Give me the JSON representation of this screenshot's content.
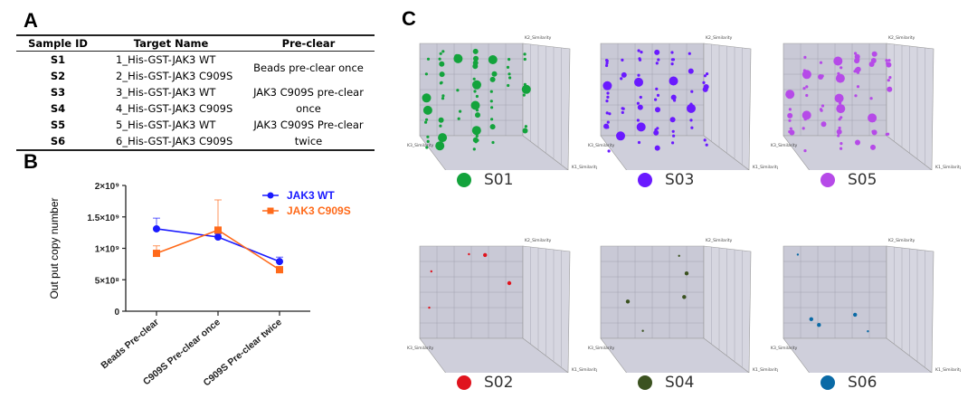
{
  "panels": {
    "a": "A",
    "b": "B",
    "c": "C"
  },
  "table": {
    "headers": [
      "Sample ID",
      "Target Name",
      "Pre-clear"
    ],
    "rows": [
      {
        "id": "S1",
        "target": "1_His-GST-JAK3 WT"
      },
      {
        "id": "S2",
        "target": "2_His-GST-JAK3 C909S"
      },
      {
        "id": "S3",
        "target": "3_His-GST-JAK3 WT"
      },
      {
        "id": "S4",
        "target": "4_His-GST-JAK3 C909S"
      },
      {
        "id": "S5",
        "target": "5_His-GST-JAK3 WT"
      },
      {
        "id": "S6",
        "target": "6_His-GST-JAK3 C909S"
      }
    ],
    "preclear_groups": [
      "Beads pre-clear once",
      "JAK3 C909S pre-clear once",
      "JAK3 C909S Pre-clear twice"
    ]
  },
  "chart_data": [
    {
      "type": "line",
      "title": "",
      "xlabel": "",
      "ylabel": "Out put copy number",
      "categories": [
        "Beads Pre-clear",
        "C909S Pre-clear once",
        "C909S Pre-clear twice"
      ],
      "ylim": [
        0,
        2000000000
      ],
      "yticks": [
        0,
        500000000,
        1000000000,
        1500000000,
        2000000000
      ],
      "ytick_labels": [
        "0",
        "5×10⁸",
        "1×10⁹",
        "1.5×10⁹",
        "2×10⁹"
      ],
      "legend_position": "top-right",
      "series": [
        {
          "name": "JAK3 WT",
          "color": "#1a1aff",
          "marker": "circle",
          "values": [
            1310000000,
            1180000000,
            790000000
          ],
          "error_upper": [
            1480000000,
            1230000000,
            860000000
          ]
        },
        {
          "name": "JAK3 C909S",
          "color": "#ff6a1a",
          "marker": "square",
          "values": [
            920000000,
            1290000000,
            660000000
          ],
          "error_upper": [
            1040000000,
            1770000000,
            690000000
          ]
        }
      ]
    },
    {
      "type": "scatter",
      "subtype": "3d-bubble",
      "axes": [
        "K1_Similarity",
        "K2_Similarity",
        "K3_Similarity"
      ],
      "panels": [
        {
          "name": "S01",
          "color": "#13a33c",
          "density": "high"
        },
        {
          "name": "S03",
          "color": "#6a1aff",
          "density": "high"
        },
        {
          "name": "S05",
          "color": "#b64ae8",
          "density": "high"
        },
        {
          "name": "S02",
          "color": "#e0141e",
          "density": "low"
        },
        {
          "name": "S04",
          "color": "#3b5220",
          "density": "low"
        },
        {
          "name": "S06",
          "color": "#0a6aa6",
          "density": "low"
        }
      ]
    }
  ]
}
